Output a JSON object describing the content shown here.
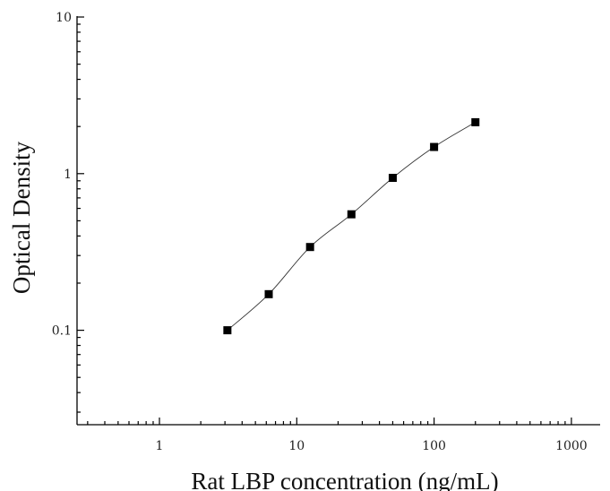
{
  "chart_data": {
    "type": "scatter",
    "xlabel": "Rat LBP concentration (ng/mL)",
    "ylabel": "Optical Density",
    "xscale": "log",
    "yscale": "log",
    "xlim": [
      0.3,
      2500
    ],
    "ylim": [
      0.026,
      10
    ],
    "x_ticks": [
      1,
      10,
      100,
      1000
    ],
    "x_tick_labels": [
      "1",
      "10",
      "100",
      "1000"
    ],
    "y_ticks": [
      0.1,
      1,
      10
    ],
    "y_tick_labels": [
      "0.1",
      "1",
      "10"
    ],
    "grid": false,
    "legend": "none",
    "marker_color": "#000000",
    "line_color": "#333333",
    "series": [
      {
        "x": [
          3.125,
          6.25,
          12.5,
          25,
          50,
          100,
          200
        ],
        "y": [
          0.1,
          0.17,
          0.34,
          0.55,
          0.94,
          1.48,
          2.13
        ]
      }
    ]
  }
}
